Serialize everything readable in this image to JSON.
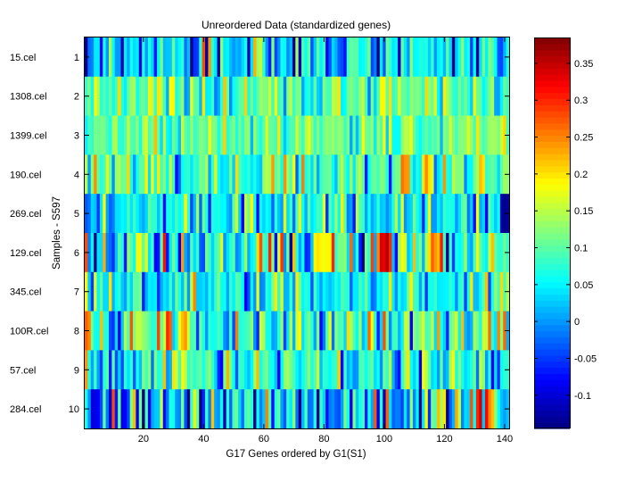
{
  "chart_data": {
    "type": "heatmap",
    "title": "Unreordered Data (standardized genes)",
    "xlabel": "G17 Genes ordered by G1(S1)",
    "ylabel": "Samples - S597",
    "n_columns": 141,
    "x_ticks": [
      20,
      40,
      60,
      80,
      100,
      120,
      140
    ],
    "y_ticks": [
      1,
      2,
      3,
      4,
      5,
      6,
      7,
      8,
      9,
      10
    ],
    "sample_names": [
      "15.cel",
      "1308.cel",
      "1399.cel",
      "190.cel",
      "269.cel",
      "129.cel",
      "345.cel",
      "100R.cel",
      "57.cel",
      "284.cel"
    ],
    "colorbar": {
      "min": -0.145,
      "max": 0.385,
      "colormap": "jet",
      "ticks": [
        -0.1,
        -0.05,
        0,
        0.05,
        0.1,
        0.15,
        0.2,
        0.25,
        0.3,
        0.35
      ]
    },
    "rows": [
      {
        "sample": "15.cel",
        "seed": 11,
        "mean": 0.04,
        "spread": 0.09,
        "features": [
          [
            40,
            0.28
          ],
          [
            42,
            0.24
          ],
          [
            19,
            -0.09
          ],
          [
            6,
            -0.08
          ]
        ]
      },
      {
        "sample": "1308.cel",
        "seed": 23,
        "mean": 0.1,
        "spread": 0.055,
        "features": [
          [
            25,
            0.2
          ],
          [
            30,
            0.19
          ],
          [
            40,
            0.2
          ],
          [
            85,
            0.2
          ],
          [
            100,
            0.19
          ]
        ]
      },
      {
        "sample": "1399.cel",
        "seed": 37,
        "mean": 0.11,
        "spread": 0.05,
        "features": [
          [
            24,
            0.22
          ],
          [
            47,
            0.21
          ],
          [
            65,
            0.2
          ],
          [
            93,
            0.19
          ],
          [
            131,
            0.2
          ]
        ]
      },
      {
        "sample": "190.cel",
        "seed": 41,
        "mean": 0.09,
        "spread": 0.075,
        "features": [
          [
            106,
            0.26
          ],
          [
            108,
            0.24
          ],
          [
            113,
            0.2
          ],
          [
            115,
            0.2
          ],
          [
            132,
            0.22
          ],
          [
            133,
            0.2
          ]
        ]
      },
      {
        "sample": "269.cel",
        "seed": 53,
        "mean": 0.05,
        "spread": 0.07,
        "features": [
          [
            140,
            -0.14
          ],
          [
            141,
            -0.13
          ],
          [
            139,
            -0.12
          ],
          [
            134,
            -0.08
          ],
          [
            70,
            -0.02
          ],
          [
            56,
            0.19
          ]
        ]
      },
      {
        "sample": "129.cel",
        "seed": 67,
        "mean": 0.07,
        "spread": 0.11,
        "features": [
          [
            77,
            0.19
          ],
          [
            78,
            0.2
          ],
          [
            79,
            0.19
          ],
          [
            80,
            0.18
          ],
          [
            81,
            0.19
          ],
          [
            82,
            0.19
          ],
          [
            83,
            0.3
          ],
          [
            99,
            0.34
          ],
          [
            100,
            0.33
          ],
          [
            101,
            0.36
          ],
          [
            102,
            0.3
          ],
          [
            98,
            0.25
          ],
          [
            70,
            0.22
          ],
          [
            116,
            0.27
          ],
          [
            117,
            0.24
          ],
          [
            118,
            0.22
          ],
          [
            110,
            0.22
          ],
          [
            115,
            0.2
          ],
          [
            24,
            -0.08
          ],
          [
            25,
            -0.07
          ],
          [
            14,
            -0.07
          ]
        ]
      },
      {
        "sample": "345.cel",
        "seed": 79,
        "mean": 0.06,
        "spread": 0.07,
        "features": [
          [
            37,
            0.25
          ],
          [
            102,
            0.2
          ],
          [
            129,
            0.2
          ],
          [
            134,
            0.22
          ]
        ]
      },
      {
        "sample": "100R.cel",
        "seed": 83,
        "mean": 0.09,
        "spread": 0.09,
        "features": [
          [
            1,
            0.27
          ],
          [
            2,
            0.25
          ],
          [
            28,
            0.3
          ],
          [
            29,
            0.27
          ],
          [
            6,
            0.22
          ],
          [
            34,
            0.24
          ]
        ]
      },
      {
        "sample": "57.cel",
        "seed": 97,
        "mean": 0.07,
        "spread": 0.075,
        "features": [
          [
            1,
            0.24
          ],
          [
            27,
            0.22
          ],
          [
            30,
            0.2
          ],
          [
            108,
            0.2
          ]
        ]
      },
      {
        "sample": "284.cel",
        "seed": 101,
        "mean": 0.04,
        "spread": 0.11,
        "features": [
          [
            131,
            0.3
          ],
          [
            132,
            0.34
          ],
          [
            134,
            0.32
          ],
          [
            135,
            0.25
          ],
          [
            136,
            0.22
          ],
          [
            4,
            -0.09
          ],
          [
            5,
            -0.08
          ],
          [
            13,
            -0.09
          ],
          [
            14,
            -0.08
          ],
          [
            18,
            -0.09
          ],
          [
            22,
            -0.09
          ],
          [
            118,
            0.22
          ],
          [
            120,
            0.2
          ]
        ]
      }
    ]
  }
}
